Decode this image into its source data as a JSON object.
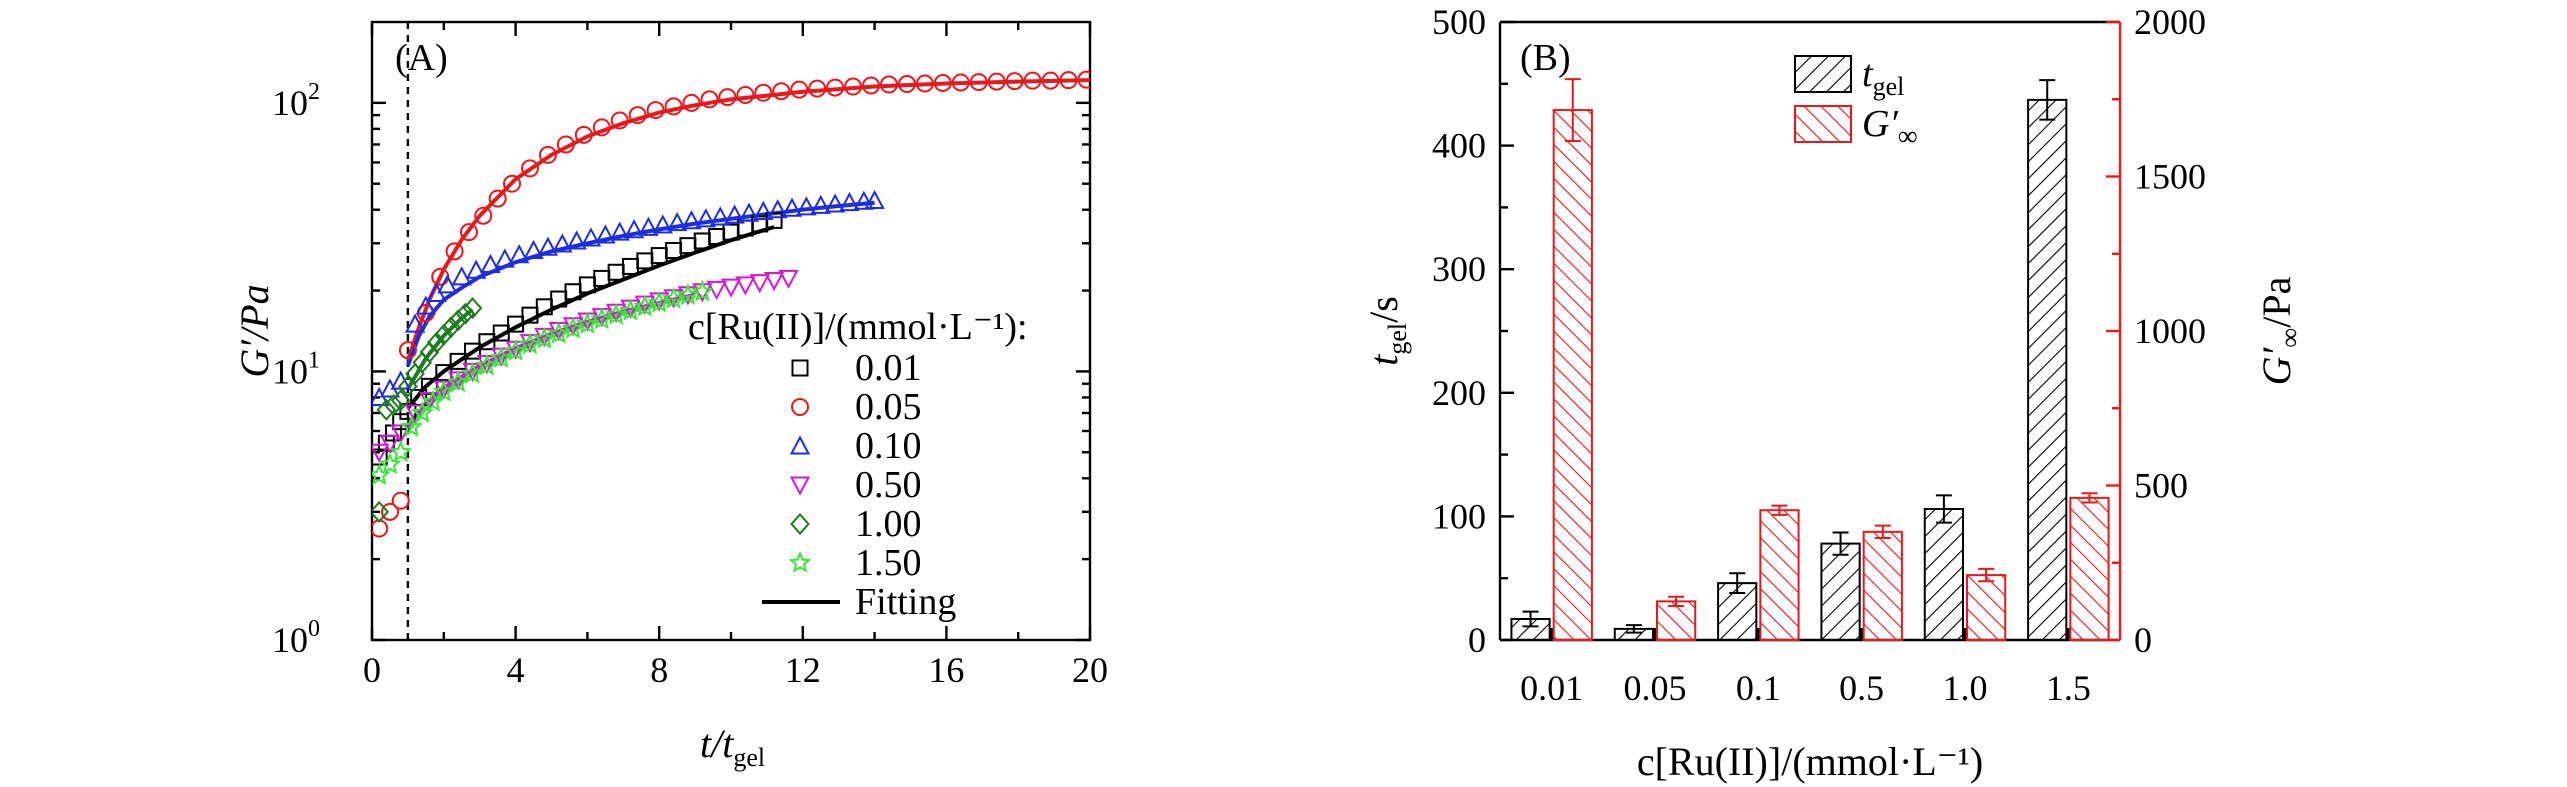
{
  "figure": "Two-panel rheology figure",
  "chart_data": [
    {
      "type": "scatter",
      "panel_label": "(A)",
      "ylabel": "G′/Pa",
      "xlabel_main": "t/t",
      "xlabel_sub": "gel",
      "x_ticks": [
        0,
        4,
        8,
        12,
        16,
        20
      ],
      "xlim": [
        0,
        20
      ],
      "y_scale": "log",
      "ylim": [
        1,
        200
      ],
      "y_ticks": [
        {
          "value": 1,
          "base": "10",
          "exp": "0"
        },
        {
          "value": 10,
          "base": "10",
          "exp": "1"
        },
        {
          "value": 100,
          "base": "10",
          "exp": "2"
        }
      ],
      "vline_x": 1.0,
      "legend_title": "c[Ru(II)]/(mmol·L⁻¹):",
      "fitting_label": "Fitting",
      "series": [
        {
          "name": "0.01",
          "color": "#000000",
          "marker": "square",
          "x": [
            0.2,
            0.4,
            0.6,
            0.8,
            1.0,
            1.3,
            1.6,
            2.0,
            2.4,
            2.8,
            3.2,
            3.6,
            4.0,
            4.4,
            4.8,
            5.2,
            5.6,
            6.0,
            6.4,
            6.8,
            7.2,
            7.6,
            8.0,
            8.4,
            8.8,
            9.2,
            9.6,
            10.0,
            10.4,
            10.8,
            11.2
          ],
          "y": [
            4.8,
            5.4,
            5.9,
            6.5,
            7.1,
            8.0,
            8.8,
            9.9,
            10.9,
            11.9,
            12.9,
            13.9,
            15.0,
            16.2,
            17.4,
            18.6,
            19.8,
            21.0,
            22.2,
            23.4,
            24.6,
            25.8,
            27.0,
            28.2,
            29.4,
            30.6,
            31.8,
            33.0,
            34.2,
            35.4,
            36.5
          ],
          "fit_x": [
            1.0,
            1.5,
            2.0,
            3.0,
            4.0,
            5.0,
            6.0,
            7.0,
            8.0,
            9.0,
            10.0,
            11.2
          ],
          "fit_y": [
            7.3,
            8.8,
            10.0,
            12.3,
            14.6,
            17.0,
            19.5,
            22.0,
            24.8,
            27.7,
            30.8,
            34.5
          ]
        },
        {
          "name": "0.05",
          "color": "#e8191c",
          "marker": "circle",
          "x": [
            0.2,
            0.5,
            0.8,
            1.0,
            1.5,
            1.9,
            2.3,
            2.7,
            3.1,
            3.5,
            3.9,
            4.4,
            4.9,
            5.4,
            5.9,
            6.4,
            6.9,
            7.4,
            7.9,
            8.4,
            8.9,
            9.4,
            9.9,
            10.4,
            10.9,
            11.4,
            11.9,
            12.4,
            12.9,
            13.4,
            13.9,
            14.4,
            14.9,
            15.4,
            15.9,
            16.4,
            16.9,
            17.4,
            17.9,
            18.4,
            18.9,
            19.4,
            19.9
          ],
          "y": [
            2.6,
            3.0,
            3.3,
            12.0,
            16.5,
            22.5,
            28.0,
            33.0,
            38.0,
            44.0,
            50.0,
            57.0,
            64.0,
            70.0,
            76.0,
            81.0,
            86.0,
            90.0,
            94.0,
            97.0,
            100.0,
            103.0,
            105.0,
            107.0,
            109.0,
            110.5,
            112.0,
            113.0,
            114.0,
            115.0,
            116.0,
            117.0,
            117.5,
            118.0,
            118.5,
            119.0,
            119.5,
            120.0,
            120.5,
            121.0,
            121.0,
            121.5,
            122.0
          ],
          "fit_x": [
            1.0,
            1.3,
            1.6,
            2.0,
            2.5,
            3.0,
            4.0,
            5.0,
            6.0,
            7.0,
            8.0,
            9.0,
            10.0,
            12.0,
            14.0,
            16.0,
            18.0,
            20.0
          ],
          "fit_y": [
            11.0,
            14.5,
            18.5,
            24.0,
            31.0,
            38.0,
            52.0,
            64.0,
            75.0,
            84.0,
            92.0,
            98.0,
            103.0,
            110.0,
            115.0,
            118.0,
            120.0,
            121.5
          ]
        },
        {
          "name": "0.10",
          "color": "#1f2de0",
          "marker": "triangle-up",
          "x": [
            0.2,
            0.5,
            0.8,
            1.2,
            1.5,
            1.8,
            2.1,
            2.5,
            2.9,
            3.3,
            3.7,
            4.1,
            4.5,
            4.9,
            5.3,
            5.7,
            6.1,
            6.5,
            6.9,
            7.3,
            7.7,
            8.1,
            8.5,
            8.9,
            9.3,
            9.7,
            10.1,
            10.5,
            10.9,
            11.3,
            11.7,
            12.1,
            12.5,
            12.9,
            13.3,
            13.7,
            14.0
          ],
          "y": [
            8.0,
            8.6,
            9.2,
            15.0,
            17.5,
            19.5,
            21.0,
            22.5,
            23.8,
            25.0,
            26.2,
            27.2,
            28.2,
            29.0,
            29.8,
            30.6,
            31.4,
            32.2,
            33.0,
            33.7,
            34.4,
            35.1,
            35.8,
            36.4,
            37.0,
            37.6,
            38.2,
            38.8,
            39.4,
            40.0,
            40.5,
            41.0,
            41.5,
            42.0,
            42.5,
            43.0,
            43.3
          ],
          "fit_x": [
            1.0,
            1.3,
            1.6,
            2.0,
            2.5,
            3.0,
            4.0,
            5.0,
            6.0,
            7.0,
            8.0,
            9.0,
            10.0,
            11.0,
            12.0,
            13.0,
            14.0
          ],
          "fit_y": [
            10.5,
            13.5,
            16.0,
            18.5,
            20.5,
            22.5,
            25.5,
            28.0,
            30.0,
            32.0,
            33.8,
            35.5,
            37.0,
            38.5,
            40.0,
            41.3,
            42.5
          ]
        },
        {
          "name": "0.50",
          "color": "#d516d5",
          "marker": "triangle-down",
          "x": [
            0.2,
            0.5,
            0.8,
            1.2,
            1.6,
            2.0,
            2.4,
            2.8,
            3.2,
            3.6,
            4.0,
            4.4,
            4.8,
            5.2,
            5.6,
            6.0,
            6.4,
            6.8,
            7.2,
            7.6,
            8.0,
            8.4,
            8.8,
            9.2,
            9.6,
            10.0,
            10.4,
            10.8,
            11.2,
            11.6
          ],
          "y": [
            5.0,
            5.4,
            5.9,
            7.0,
            7.8,
            8.6,
            9.3,
            10.0,
            10.7,
            11.4,
            12.1,
            12.8,
            13.5,
            14.2,
            14.8,
            15.4,
            16.0,
            16.6,
            17.2,
            17.8,
            18.3,
            18.8,
            19.3,
            19.8,
            20.2,
            20.6,
            21.0,
            21.4,
            21.8,
            22.2
          ],
          "fit_x": [
            1.0,
            1.5,
            2.0,
            3.0,
            4.0,
            5.0,
            6.0,
            7.0,
            8.0,
            9.0
          ],
          "fit_y": [
            6.3,
            7.6,
            8.7,
            10.5,
            12.2,
            13.8,
            15.3,
            16.7,
            18.0,
            19.3
          ]
        },
        {
          "name": "1.00",
          "color": "#1d7a1d",
          "marker": "diamond",
          "x": [
            0.2,
            0.4,
            0.6,
            0.8,
            1.0,
            1.2,
            1.4,
            1.6,
            1.8,
            2.0,
            2.2,
            2.4,
            2.6,
            2.8
          ],
          "y": [
            3.0,
            7.2,
            7.5,
            7.8,
            8.8,
            9.8,
            10.8,
            11.8,
            12.8,
            13.7,
            14.6,
            15.5,
            16.4,
            17.2
          ],
          "fit_x": [
            1.0,
            1.5,
            2.0,
            2.5,
            2.8
          ],
          "fit_y": [
            8.6,
            11.2,
            13.6,
            15.8,
            17.0
          ]
        },
        {
          "name": "1.50",
          "color": "#39e639",
          "marker": "star",
          "x": [
            0.2,
            0.5,
            0.8,
            1.1,
            1.4,
            1.7,
            2.0,
            2.4,
            2.8,
            3.2,
            3.6,
            4.0,
            4.4,
            4.8,
            5.2,
            5.6,
            6.0,
            6.4,
            6.8,
            7.2,
            7.6,
            8.0,
            8.4,
            8.8,
            9.2
          ],
          "y": [
            4.1,
            4.5,
            5.0,
            6.2,
            7.0,
            7.7,
            8.4,
            9.1,
            9.8,
            10.5,
            11.2,
            11.9,
            12.6,
            13.2,
            13.8,
            14.4,
            15.0,
            15.6,
            16.2,
            16.8,
            17.4,
            18.0,
            18.6,
            19.2,
            19.8
          ],
          "fit_x": [
            1.0,
            1.5,
            2.0,
            3.0,
            4.0,
            5.0,
            6.0,
            7.0,
            8.0,
            9.0
          ],
          "fit_y": [
            6.0,
            7.3,
            8.4,
            10.2,
            11.9,
            13.5,
            15.0,
            16.4,
            17.8,
            19.1
          ]
        }
      ]
    },
    {
      "type": "bar",
      "panel_label": "(B)",
      "categories": [
        "0.01",
        "0.05",
        "0.1",
        "0.5",
        "1.0",
        "1.5"
      ],
      "xlabel": "c[Ru(II)]/(mmol·L⁻¹)",
      "ylabel_left_main": "t",
      "ylabel_left_sub": "gel",
      "ylabel_left_unit": "/s",
      "ylabel_right_main": "G′",
      "ylabel_right_sub": "∞",
      "ylabel_right_unit": "/Pa",
      "ylim_left": [
        0,
        500
      ],
      "y_ticks_left": [
        0,
        100,
        200,
        300,
        400,
        500
      ],
      "ylim_right": [
        0,
        2000
      ],
      "y_ticks_right": [
        0,
        500,
        1000,
        1500,
        2000
      ],
      "series": [
        {
          "name_main": "t",
          "name_sub": "gel",
          "axis": "left",
          "color": "#000000",
          "values": [
            17,
            9,
            46,
            78,
            106,
            437
          ],
          "errors": [
            6,
            3,
            8,
            9,
            11,
            16
          ]
        },
        {
          "name_main": "G′",
          "name_sub": "∞",
          "axis": "right",
          "color": "#e8191c",
          "values": [
            1715,
            125,
            420,
            350,
            210,
            460
          ],
          "errors": [
            100,
            15,
            15,
            20,
            20,
            15
          ]
        }
      ]
    }
  ]
}
